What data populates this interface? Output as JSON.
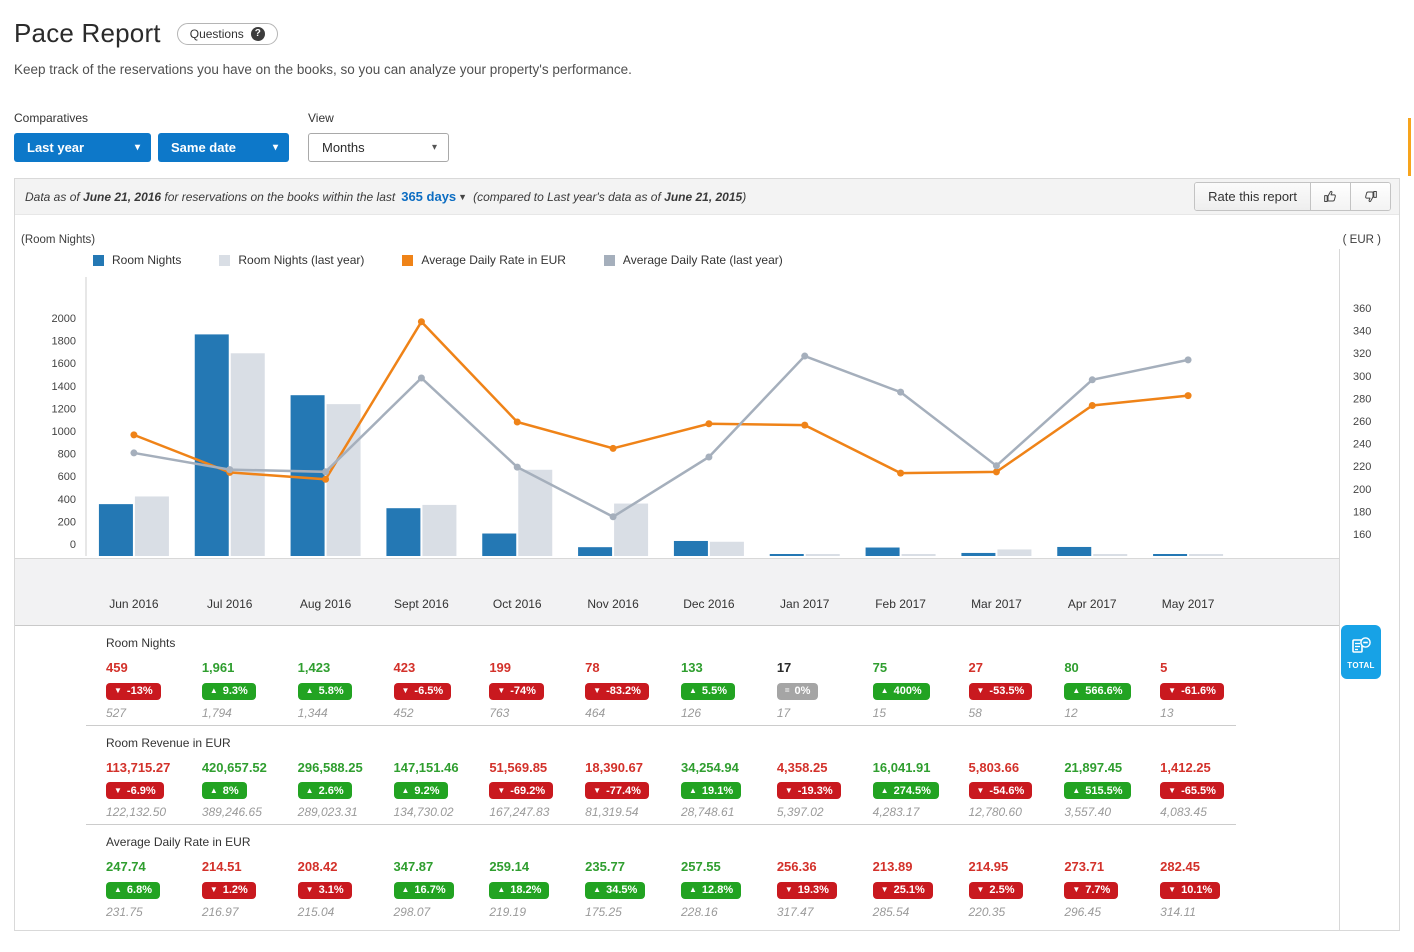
{
  "page": {
    "title": "Pace Report",
    "questions_label": "Questions",
    "questions_count": "?",
    "subtitle": "Keep track of the reservations you have on the books, so you can analyze your property's performance."
  },
  "filters": {
    "comparatives_label": "Comparatives",
    "comparative_1": "Last year",
    "comparative_2": "Same date",
    "view_label": "View",
    "view_value": "Months"
  },
  "info_bar": {
    "prefix": "Data as of ",
    "date1": "June 21, 2016",
    "middle": " for reservations on the books within the last",
    "days_link": "365 days",
    "compared_pre": "(compared to Last year's data as of ",
    "date2": "June 21, 2015",
    "compared_post": ")",
    "rate_label": "Rate this report"
  },
  "colors": {
    "accent_blue": "#0d78c9",
    "link_blue": "#0c6dc2",
    "total_blue": "#17a2e6",
    "positive": "#22a322",
    "positive_text": "#2f9e2f",
    "negative": "#c9191f",
    "negative_text": "#d3312a",
    "neutral": "#a5a5a5",
    "strip_orange": "#f7a41d"
  },
  "chart_data": {
    "type": "bar+line",
    "grid": false,
    "legend_position": "top",
    "categories": [
      "Jun 2016",
      "Jul 2016",
      "Aug 2016",
      "Sept 2016",
      "Oct 2016",
      "Nov 2016",
      "Dec 2016",
      "Jan 2017",
      "Feb 2017",
      "Mar 2017",
      "Apr 2017",
      "May 2017"
    ],
    "left_axis": {
      "label": "(Room Nights)",
      "min": 0,
      "max": 2000,
      "step": 200
    },
    "right_axis": {
      "label": "( EUR )",
      "min": 160,
      "max": 360,
      "step": 20
    },
    "series": [
      {
        "name": "Room Nights",
        "type": "bar",
        "axis": "left",
        "color": "#2478b4",
        "values": [
          459,
          1961,
          1423,
          423,
          199,
          78,
          133,
          17,
          75,
          27,
          80,
          5
        ]
      },
      {
        "name": "Room Nights (last year)",
        "type": "bar",
        "axis": "left",
        "color": "#d9dee5",
        "values": [
          527,
          1794,
          1344,
          452,
          763,
          464,
          126,
          17,
          15,
          58,
          12,
          13
        ]
      },
      {
        "name": "Average Daily Rate in EUR",
        "type": "line",
        "axis": "right",
        "color": "#ef8318",
        "values": [
          247.74,
          214.51,
          208.42,
          347.87,
          259.14,
          235.77,
          257.55,
          256.36,
          213.89,
          214.95,
          273.71,
          282.45
        ]
      },
      {
        "name": "Average Daily Rate (last year)",
        "type": "line",
        "axis": "right",
        "color": "#a5afbc",
        "values": [
          231.75,
          216.97,
          215.04,
          298.07,
          219.19,
          175.25,
          228.16,
          317.47,
          285.54,
          220.35,
          296.45,
          314.11
        ]
      }
    ]
  },
  "tables": [
    {
      "title": "Room Nights",
      "cells": [
        {
          "value": "459",
          "trend": "down",
          "pct": "-13%",
          "last": "527"
        },
        {
          "value": "1,961",
          "trend": "up",
          "pct": "9.3%",
          "last": "1,794"
        },
        {
          "value": "1,423",
          "trend": "up",
          "pct": "5.8%",
          "last": "1,344"
        },
        {
          "value": "423",
          "trend": "down",
          "pct": "-6.5%",
          "last": "452"
        },
        {
          "value": "199",
          "trend": "down",
          "pct": "-74%",
          "last": "763"
        },
        {
          "value": "78",
          "trend": "down",
          "pct": "-83.2%",
          "last": "464"
        },
        {
          "value": "133",
          "trend": "up",
          "pct": "5.5%",
          "last": "126"
        },
        {
          "value": "17",
          "trend": "flat",
          "pct": "0%",
          "last": "17"
        },
        {
          "value": "75",
          "trend": "up",
          "pct": "400%",
          "last": "15"
        },
        {
          "value": "27",
          "trend": "down",
          "pct": "-53.5%",
          "last": "58"
        },
        {
          "value": "80",
          "trend": "up",
          "pct": "566.6%",
          "last": "12"
        },
        {
          "value": "5",
          "trend": "down",
          "pct": "-61.6%",
          "last": "13"
        }
      ]
    },
    {
      "title": "Room Revenue in EUR",
      "cells": [
        {
          "value": "113,715.27",
          "trend": "down",
          "pct": "-6.9%",
          "last": "122,132.50"
        },
        {
          "value": "420,657.52",
          "trend": "up",
          "pct": "8%",
          "last": "389,246.65"
        },
        {
          "value": "296,588.25",
          "trend": "up",
          "pct": "2.6%",
          "last": "289,023.31"
        },
        {
          "value": "147,151.46",
          "trend": "up",
          "pct": "9.2%",
          "last": "134,730.02"
        },
        {
          "value": "51,569.85",
          "trend": "down",
          "pct": "-69.2%",
          "last": "167,247.83"
        },
        {
          "value": "18,390.67",
          "trend": "down",
          "pct": "-77.4%",
          "last": "81,319.54"
        },
        {
          "value": "34,254.94",
          "trend": "up",
          "pct": "19.1%",
          "last": "28,748.61"
        },
        {
          "value": "4,358.25",
          "trend": "down",
          "pct": "-19.3%",
          "last": "5,397.02"
        },
        {
          "value": "16,041.91",
          "trend": "up",
          "pct": "274.5%",
          "last": "4,283.17"
        },
        {
          "value": "5,803.66",
          "trend": "down",
          "pct": "-54.6%",
          "last": "12,780.60"
        },
        {
          "value": "21,897.45",
          "trend": "up",
          "pct": "515.5%",
          "last": "3,557.40"
        },
        {
          "value": "1,412.25",
          "trend": "down",
          "pct": "-65.5%",
          "last": "4,083.45"
        }
      ]
    },
    {
      "title": "Average Daily Rate in EUR",
      "cells": [
        {
          "value": "247.74",
          "trend": "up",
          "pct": "6.8%",
          "last": "231.75"
        },
        {
          "value": "214.51",
          "trend": "down",
          "pct": "1.2%",
          "last": "216.97"
        },
        {
          "value": "208.42",
          "trend": "down",
          "pct": "3.1%",
          "last": "215.04"
        },
        {
          "value": "347.87",
          "trend": "up",
          "pct": "16.7%",
          "last": "298.07"
        },
        {
          "value": "259.14",
          "trend": "up",
          "pct": "18.2%",
          "last": "219.19"
        },
        {
          "value": "235.77",
          "trend": "up",
          "pct": "34.5%",
          "last": "175.25"
        },
        {
          "value": "257.55",
          "trend": "up",
          "pct": "12.8%",
          "last": "228.16"
        },
        {
          "value": "256.36",
          "trend": "down",
          "pct": "19.3%",
          "last": "317.47"
        },
        {
          "value": "213.89",
          "trend": "down",
          "pct": "25.1%",
          "last": "285.54"
        },
        {
          "value": "214.95",
          "trend": "down",
          "pct": "2.5%",
          "last": "220.35"
        },
        {
          "value": "273.71",
          "trend": "down",
          "pct": "7.7%",
          "last": "296.45"
        },
        {
          "value": "282.45",
          "trend": "down",
          "pct": "10.1%",
          "last": "314.11"
        }
      ]
    }
  ],
  "total_button": {
    "label": "TOTAL"
  }
}
